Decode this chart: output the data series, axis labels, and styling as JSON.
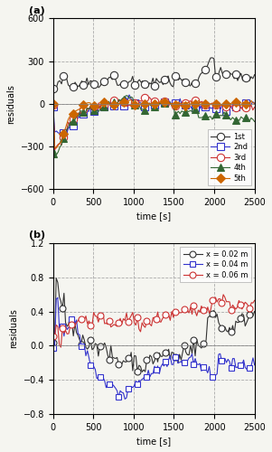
{
  "panel_a": {
    "title": "(a)",
    "ylabel": "residuals",
    "xlabel": "time [s]",
    "xlim": [
      0,
      2500
    ],
    "ylim": [
      -600,
      600
    ],
    "yticks": [
      -600,
      -300,
      0,
      300,
      600
    ],
    "xticks": [
      0,
      500,
      1000,
      1500,
      2000,
      2500
    ],
    "series": {
      "1st": {
        "color": "#333333",
        "marker": "o",
        "ms": 4
      },
      "2nd": {
        "color": "#3333cc",
        "marker": "s",
        "ms": 4
      },
      "3rd": {
        "color": "#cc3333",
        "marker": "o",
        "ms": 4
      },
      "4th": {
        "color": "#336633",
        "marker": "^",
        "ms": 4
      },
      "5th": {
        "color": "#cc6600",
        "marker": "D",
        "ms": 4
      }
    }
  },
  "panel_b": {
    "title": "(b)",
    "ylabel": "residuals",
    "xlabel": "time [s]",
    "xlim": [
      0,
      2500
    ],
    "ylim": [
      -0.8,
      1.2
    ],
    "yticks": [
      -0.8,
      -0.4,
      0,
      0.4,
      0.8,
      1.2
    ],
    "xticks": [
      0,
      500,
      1000,
      1500,
      2000,
      2500
    ],
    "series": {
      "x = 0.02 m": {
        "color": "#333333",
        "marker": "o",
        "ms": 4
      },
      "x = 0.04 m": {
        "color": "#3333cc",
        "marker": "s",
        "ms": 4
      },
      "x = 0.06 m": {
        "color": "#cc3333",
        "marker": "o",
        "ms": 4
      }
    }
  },
  "background": "#f5f5f0",
  "grid_color": "#aaaaaa",
  "grid_style": "--"
}
